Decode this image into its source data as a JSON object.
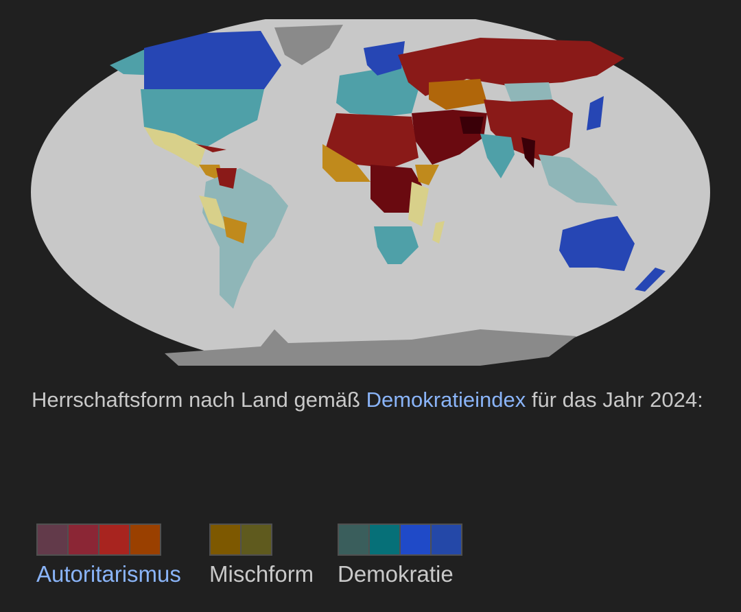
{
  "map": {
    "ocean_color": "#c8c8c8",
    "no_data_color": "#8a8a8a",
    "region_colors": {
      "full_democracy": "#2646b4",
      "flawed_democracy_high": "#4fa0a8",
      "flawed_democracy_low": "#8fb6b8",
      "hybrid_high": "#d8d08a",
      "hybrid_low": "#c08a1c",
      "authoritarian_high": "#b0660a",
      "authoritarian_mid": "#8a1a18",
      "authoritarian_low": "#6a0a10",
      "authoritarian_lowest": "#3a0008"
    }
  },
  "caption": {
    "before_link": "Herrschaftsform nach Land gemäß ",
    "link": "Demokratieindex",
    "after_link": " für das Jahr 2024:"
  },
  "legend": {
    "groups": [
      {
        "label": "Autoritarismus",
        "is_link": true,
        "colors": [
          "#623a4a",
          "#8b2635",
          "#a8241f",
          "#9a4000"
        ]
      },
      {
        "label": "Mischform",
        "is_link": false,
        "colors": [
          "#7d5800",
          "#5f5a1e"
        ]
      },
      {
        "label": "Demokratie",
        "is_link": false,
        "colors": [
          "#3a5e5c",
          "#067078",
          "#1f4ac8",
          "#2448a8"
        ]
      }
    ]
  }
}
